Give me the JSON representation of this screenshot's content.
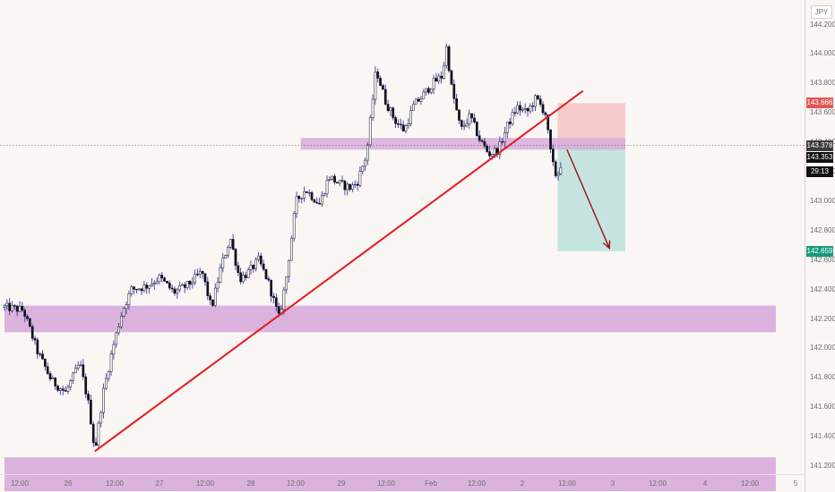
{
  "header": {
    "currency": "JPY"
  },
  "price_badges": {
    "stop": "143.666",
    "last": "143.378",
    "bid": "143.353",
    "countdown": "29:13",
    "target": "142.659"
  },
  "colors": {
    "background": "#faf6f4",
    "zone": "#d7abdb",
    "trendline": "#e5191e",
    "candle": "#101018",
    "candle_wick": "#3b3bb0",
    "stop_zone": "#f6cbcb",
    "target_zone": "#c6e4df",
    "arrow": "#9a1015",
    "stop_badge": "#e25656",
    "target_badge": "#159a7c",
    "last_badge": "#3a3a3a"
  },
  "chart_data": {
    "type": "candlestick",
    "symbol_currency": "JPY",
    "ylim": [
      141.0,
      144.35
    ],
    "y_ticks": [
      "144.200",
      "144.000",
      "143.800",
      "143.600",
      "143.400",
      "143.200",
      "143.000",
      "142.800",
      "142.600",
      "142.400",
      "142.200",
      "142.000",
      "141.800",
      "141.600",
      "141.400",
      "141.200"
    ],
    "x_ticks": [
      "12:00",
      "26",
      "12:00",
      "27",
      "12:00",
      "28",
      "12:00",
      "29",
      "12:00",
      "Feb",
      "12:00",
      "2",
      "12:00",
      "3",
      "12:00",
      "4",
      "12:00",
      "5"
    ],
    "price_path": [
      [
        0,
        142.28
      ],
      [
        2,
        142.26
      ],
      [
        3.5,
        141.98
      ],
      [
        5,
        141.78
      ],
      [
        6.5,
        141.7
      ],
      [
        8,
        141.9
      ],
      [
        9,
        141.6
      ],
      [
        9.6,
        141.3
      ],
      [
        10.5,
        141.7
      ],
      [
        11.5,
        142.0
      ],
      [
        12.5,
        142.25
      ],
      [
        13.5,
        142.4
      ],
      [
        15,
        142.42
      ],
      [
        16.5,
        142.48
      ],
      [
        18,
        142.38
      ],
      [
        19.5,
        142.43
      ],
      [
        21,
        142.52
      ],
      [
        22,
        142.27
      ],
      [
        23,
        142.55
      ],
      [
        24,
        142.75
      ],
      [
        25,
        142.47
      ],
      [
        26,
        142.52
      ],
      [
        27,
        142.6
      ],
      [
        28,
        142.46
      ],
      [
        29.2,
        142.2
      ],
      [
        30,
        142.5
      ],
      [
        31,
        143.0
      ],
      [
        32,
        143.08
      ],
      [
        33.5,
        142.98
      ],
      [
        34.5,
        143.17
      ],
      [
        35.5,
        143.12
      ],
      [
        36.8,
        143.09
      ],
      [
        37.5,
        143.13
      ],
      [
        38.5,
        143.32
      ],
      [
        39.5,
        143.9
      ],
      [
        40.5,
        143.68
      ],
      [
        41.5,
        143.55
      ],
      [
        42.5,
        143.48
      ],
      [
        43.5,
        143.65
      ],
      [
        44.5,
        143.72
      ],
      [
        45.5,
        143.8
      ],
      [
        46.5,
        143.85
      ],
      [
        47,
        144.05
      ],
      [
        47.5,
        143.78
      ],
      [
        48.5,
        143.48
      ],
      [
        49.5,
        143.58
      ],
      [
        50.5,
        143.42
      ],
      [
        51.5,
        143.32
      ],
      [
        52.5,
        143.35
      ],
      [
        53.5,
        143.52
      ],
      [
        54.5,
        143.64
      ],
      [
        55.5,
        143.6
      ],
      [
        56.5,
        143.7
      ],
      [
        57.5,
        143.6
      ],
      [
        58,
        143.35
      ],
      [
        58.5,
        143.18
      ],
      [
        59,
        143.2
      ],
      [
        59.4,
        143.36
      ]
    ],
    "zones": [
      {
        "y_low": 143.35,
        "y_high": 143.43,
        "x_start": 31.5,
        "x_end": 66
      },
      {
        "y_low": 142.11,
        "y_high": 142.29,
        "x_start": 0,
        "x_end": 82
      },
      {
        "y_low": 141.03,
        "y_high": 141.26,
        "x_start": 0,
        "x_end": 82
      }
    ],
    "trendline": {
      "x1": 9.6,
      "y1": 141.3,
      "x2": 61.5,
      "y2": 143.75
    },
    "short_position": {
      "x_start": 58.8,
      "x_end": 66,
      "entry": 143.378,
      "stop": 143.666,
      "target": 142.659
    },
    "projection_arrow": {
      "x1": 59.8,
      "y1": 143.35,
      "x2": 64.3,
      "y2": 142.68
    },
    "last_price": 143.378,
    "grid": false
  }
}
